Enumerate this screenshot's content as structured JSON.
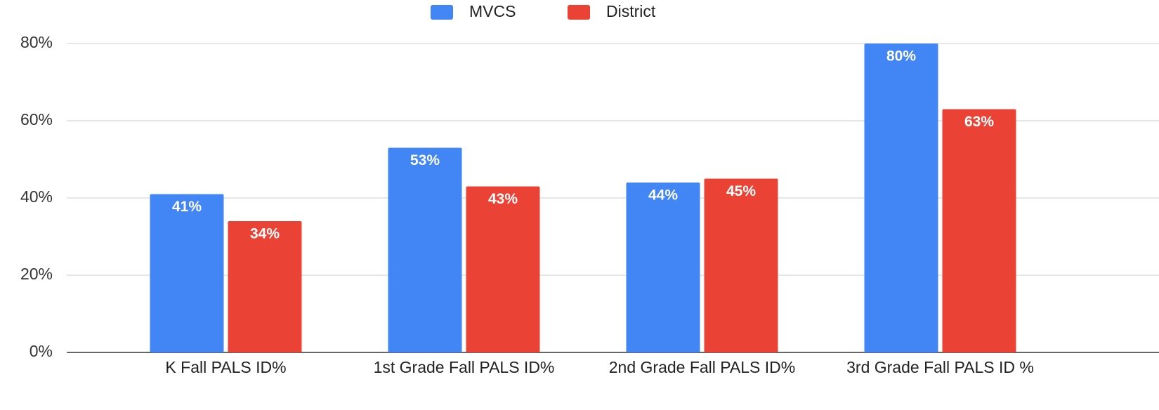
{
  "chart_data": {
    "type": "bar",
    "categories": [
      "K Fall PALS ID%",
      "1st Grade Fall PALS ID%",
      "2nd Grade Fall PALS ID%",
      "3rd Grade Fall PALS ID %"
    ],
    "series": [
      {
        "name": "MVCS",
        "color": "#4285f4",
        "values": [
          41,
          53,
          44,
          80
        ],
        "value_labels": [
          "41%",
          "53%",
          "44%",
          "80%"
        ]
      },
      {
        "name": "District",
        "color": "#ea4335",
        "values": [
          34,
          43,
          45,
          63
        ],
        "value_labels": [
          "34%",
          "43%",
          "45%",
          "63%"
        ]
      }
    ],
    "ylim": [
      0,
      80
    ],
    "yticks": [
      {
        "value": 0,
        "label": "0%"
      },
      {
        "value": 20,
        "label": "20%"
      },
      {
        "value": 40,
        "label": "40%"
      },
      {
        "value": 60,
        "label": "60%"
      },
      {
        "value": 80,
        "label": "80%"
      }
    ],
    "grid": true,
    "legend": "top"
  }
}
